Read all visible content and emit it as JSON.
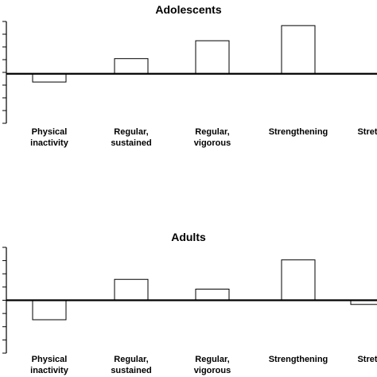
{
  "chart_data": [
    {
      "type": "bar",
      "title": "Adolescents",
      "categories": [
        [
          "Physical",
          "inactivity"
        ],
        [
          "Regular,",
          "sustained"
        ],
        [
          "Regular,",
          "vigorous"
        ],
        [
          "Strengthening"
        ],
        [
          "Stret"
        ]
      ],
      "values": [
        -0.3,
        0.55,
        1.2,
        1.75,
        0
      ],
      "ylim": [
        -1.8,
        1.9
      ],
      "yticks": 8,
      "grid": false,
      "bar_fill": "#ffffff",
      "bar_stroke": "#000000"
    },
    {
      "type": "bar",
      "title": "Adults",
      "categories": [
        [
          "Physical",
          "inactivity"
        ],
        [
          "Regular,",
          "sustained"
        ],
        [
          "Regular,",
          "vigorous"
        ],
        [
          "Strengthening"
        ],
        [
          "Stret"
        ]
      ],
      "values": [
        -0.7,
        0.75,
        0.4,
        1.45,
        -0.15
      ],
      "ylim": [
        -1.9,
        1.9
      ],
      "yticks": 8,
      "grid": false,
      "bar_fill": "#ffffff",
      "bar_stroke": "#000000"
    }
  ]
}
